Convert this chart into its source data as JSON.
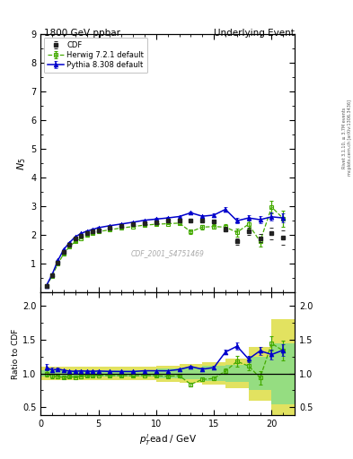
{
  "title_left": "1800 GeV ppbar",
  "title_right": "Underlying Event",
  "right_label_top": "Rivet 3.1.10, ≥ 3.7M events",
  "right_label_bot": "mcplots.cern.ch [arXiv:1306.3436]",
  "watermark": "CDF_2001_S4751469",
  "xlabel": "$p_T^l$ead / GeV",
  "ylabel_main": "$N_5$",
  "ylabel_ratio": "Ratio to CDF",
  "xlim": [
    0,
    22
  ],
  "ylim_main": [
    0,
    9
  ],
  "ylim_ratio": [
    0.38,
    2.2
  ],
  "yticks_main": [
    1,
    2,
    3,
    4,
    5,
    6,
    7,
    8,
    9
  ],
  "yticks_ratio": [
    0.5,
    1.0,
    1.5,
    2.0
  ],
  "cdf_x": [
    0.5,
    1.0,
    1.5,
    2.0,
    2.5,
    3.0,
    3.5,
    4.0,
    4.5,
    5.0,
    6.0,
    7.0,
    8.0,
    9.0,
    10.0,
    11.0,
    12.0,
    13.0,
    14.0,
    15.0,
    16.0,
    17.0,
    18.0,
    19.0,
    20.0,
    21.0
  ],
  "cdf_y": [
    0.22,
    0.6,
    1.05,
    1.43,
    1.68,
    1.88,
    1.98,
    2.07,
    2.13,
    2.18,
    2.26,
    2.32,
    2.38,
    2.42,
    2.46,
    2.5,
    2.5,
    2.52,
    2.5,
    2.48,
    2.2,
    1.78,
    2.14,
    1.9,
    2.06,
    1.93
  ],
  "cdf_yerr": [
    0.02,
    0.03,
    0.04,
    0.04,
    0.04,
    0.04,
    0.04,
    0.04,
    0.04,
    0.04,
    0.04,
    0.04,
    0.04,
    0.04,
    0.04,
    0.04,
    0.05,
    0.05,
    0.06,
    0.06,
    0.08,
    0.1,
    0.13,
    0.15,
    0.2,
    0.25
  ],
  "herwig_x": [
    0.5,
    1.0,
    1.5,
    2.0,
    2.5,
    3.0,
    3.5,
    4.0,
    4.5,
    5.0,
    6.0,
    7.0,
    8.0,
    9.0,
    10.0,
    11.0,
    12.0,
    13.0,
    14.0,
    15.0,
    16.0,
    17.0,
    18.0,
    19.0,
    20.0,
    21.0
  ],
  "herwig_y": [
    0.22,
    0.58,
    1.0,
    1.35,
    1.6,
    1.78,
    1.9,
    2.0,
    2.06,
    2.12,
    2.19,
    2.25,
    2.3,
    2.35,
    2.38,
    2.4,
    2.42,
    2.12,
    2.28,
    2.3,
    2.28,
    2.1,
    2.38,
    1.78,
    2.98,
    2.58
  ],
  "herwig_yerr": [
    0.01,
    0.02,
    0.02,
    0.02,
    0.02,
    0.02,
    0.02,
    0.02,
    0.02,
    0.02,
    0.02,
    0.02,
    0.02,
    0.02,
    0.03,
    0.03,
    0.04,
    0.07,
    0.07,
    0.07,
    0.09,
    0.14,
    0.14,
    0.18,
    0.22,
    0.28
  ],
  "pythia_x": [
    0.5,
    1.0,
    1.5,
    2.0,
    2.5,
    3.0,
    3.5,
    4.0,
    4.5,
    5.0,
    6.0,
    7.0,
    8.0,
    9.0,
    10.0,
    11.0,
    12.0,
    13.0,
    14.0,
    15.0,
    16.0,
    17.0,
    18.0,
    19.0,
    20.0,
    21.0
  ],
  "pythia_y": [
    0.24,
    0.63,
    1.12,
    1.5,
    1.74,
    1.94,
    2.06,
    2.14,
    2.2,
    2.26,
    2.33,
    2.39,
    2.45,
    2.52,
    2.56,
    2.6,
    2.65,
    2.78,
    2.66,
    2.7,
    2.9,
    2.5,
    2.6,
    2.54,
    2.64,
    2.6
  ],
  "pythia_yerr": [
    0.01,
    0.02,
    0.02,
    0.02,
    0.02,
    0.02,
    0.02,
    0.02,
    0.02,
    0.02,
    0.02,
    0.02,
    0.02,
    0.02,
    0.03,
    0.03,
    0.03,
    0.04,
    0.05,
    0.06,
    0.07,
    0.09,
    0.1,
    0.12,
    0.14,
    0.16
  ],
  "band_edges": [
    0.0,
    2.0,
    4.0,
    6.0,
    8.0,
    10.0,
    12.0,
    14.0,
    16.0,
    18.0,
    20.0,
    22.0
  ],
  "band_green": [
    0.05,
    0.05,
    0.05,
    0.05,
    0.05,
    0.07,
    0.09,
    0.11,
    0.13,
    0.25,
    0.45,
    0.45
  ],
  "band_yellow": [
    0.1,
    0.1,
    0.1,
    0.1,
    0.1,
    0.12,
    0.14,
    0.17,
    0.22,
    0.4,
    0.8,
    0.8
  ],
  "cdf_color": "#222222",
  "herwig_color": "#44aa00",
  "pythia_color": "#0000cc",
  "band_green_color": "#88dd88",
  "band_yellow_color": "#dddd44",
  "bg_color": "#ffffff"
}
